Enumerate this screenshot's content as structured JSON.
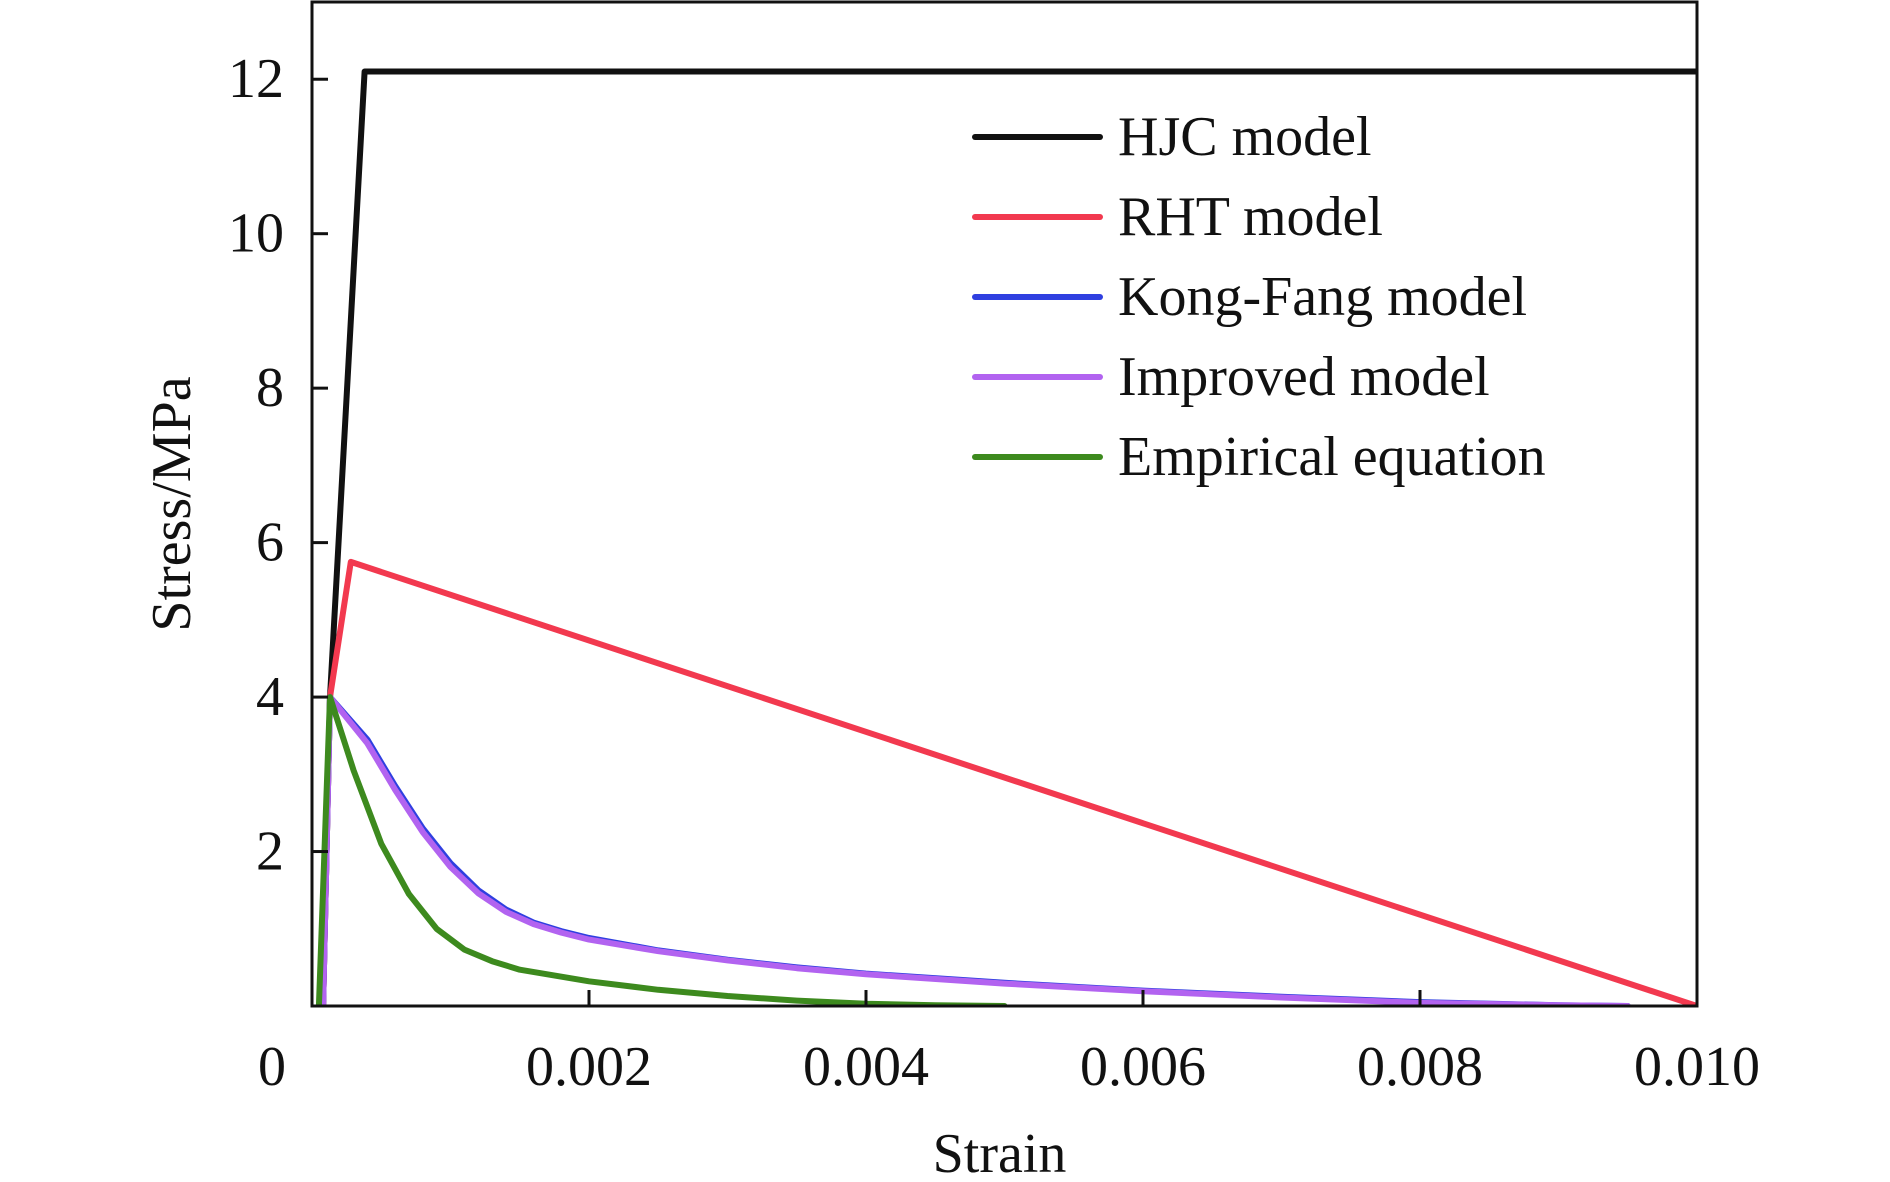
{
  "chart_data": {
    "type": "line",
    "title": "",
    "xlabel": "Strain",
    "ylabel": "Stress/MPa",
    "xlim": [
      0,
      0.01
    ],
    "ylim": [
      0,
      13
    ],
    "x_ticks": [
      0,
      0.002,
      0.004,
      0.006,
      0.008,
      0.01
    ],
    "x_tick_labels": [
      "0",
      "0.002",
      "0.004",
      "0.006",
      "0.008",
      "0.010"
    ],
    "y_ticks": [
      2,
      4,
      6,
      8,
      10,
      12
    ],
    "y_tick_labels": [
      "2",
      "4",
      "6",
      "8",
      "10",
      "12"
    ],
    "grid": false,
    "legend_position": "top-right",
    "series": [
      {
        "name": "HJC model",
        "color": "#111111",
        "points": [
          [
            8e-05,
            0
          ],
          [
            0.00013,
            4.0
          ],
          [
            0.00038,
            12.1
          ],
          [
            0.01,
            12.1
          ]
        ]
      },
      {
        "name": "RHT model",
        "color": "#f2394f",
        "points": [
          [
            8e-05,
            0
          ],
          [
            0.00013,
            4.0
          ],
          [
            0.00028,
            5.75
          ],
          [
            0.01,
            0
          ]
        ]
      },
      {
        "name": "Kong-Fang model",
        "color": "#2f3fe0",
        "points": [
          [
            8e-05,
            0
          ],
          [
            0.00013,
            4.0
          ],
          [
            0.0004,
            3.45
          ],
          [
            0.0006,
            2.85
          ],
          [
            0.0008,
            2.3
          ],
          [
            0.001,
            1.85
          ],
          [
            0.0012,
            1.5
          ],
          [
            0.0014,
            1.25
          ],
          [
            0.0016,
            1.08
          ],
          [
            0.0018,
            0.97
          ],
          [
            0.002,
            0.88
          ],
          [
            0.0025,
            0.72
          ],
          [
            0.003,
            0.6
          ],
          [
            0.0035,
            0.5
          ],
          [
            0.004,
            0.42
          ],
          [
            0.005,
            0.3
          ],
          [
            0.006,
            0.2
          ],
          [
            0.007,
            0.12
          ],
          [
            0.008,
            0.05
          ],
          [
            0.009,
            0.01
          ],
          [
            0.0095,
            0
          ]
        ]
      },
      {
        "name": "Improved model",
        "color": "#b263f0",
        "points": [
          [
            8e-05,
            0
          ],
          [
            0.00013,
            4.0
          ],
          [
            0.0004,
            3.4
          ],
          [
            0.0006,
            2.8
          ],
          [
            0.0008,
            2.25
          ],
          [
            0.001,
            1.8
          ],
          [
            0.0012,
            1.46
          ],
          [
            0.0014,
            1.22
          ],
          [
            0.0016,
            1.06
          ],
          [
            0.0018,
            0.95
          ],
          [
            0.002,
            0.86
          ],
          [
            0.0025,
            0.71
          ],
          [
            0.003,
            0.59
          ],
          [
            0.0035,
            0.49
          ],
          [
            0.004,
            0.41
          ],
          [
            0.005,
            0.29
          ],
          [
            0.006,
            0.19
          ],
          [
            0.007,
            0.11
          ],
          [
            0.008,
            0.04
          ],
          [
            0.009,
            0.01
          ],
          [
            0.0095,
            0
          ]
        ]
      },
      {
        "name": "Empirical equation",
        "color": "#3d8a1e",
        "points": [
          [
            5e-05,
            0
          ],
          [
            0.00013,
            4.0
          ],
          [
            0.0003,
            3.05
          ],
          [
            0.0005,
            2.1
          ],
          [
            0.0007,
            1.45
          ],
          [
            0.0009,
            1.0
          ],
          [
            0.0011,
            0.73
          ],
          [
            0.0013,
            0.58
          ],
          [
            0.0015,
            0.47
          ],
          [
            0.002,
            0.32
          ],
          [
            0.0025,
            0.21
          ],
          [
            0.003,
            0.13
          ],
          [
            0.0035,
            0.07
          ],
          [
            0.004,
            0.03
          ],
          [
            0.0045,
            0.01
          ],
          [
            0.005,
            0
          ]
        ]
      }
    ]
  }
}
